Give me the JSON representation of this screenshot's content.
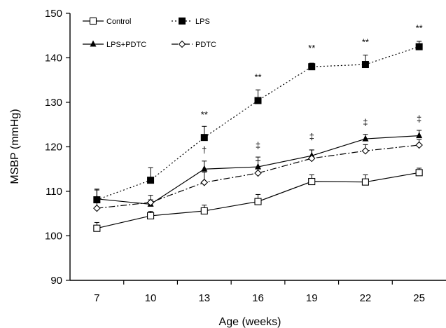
{
  "chart_data": {
    "type": "line",
    "title": "",
    "xlabel": "Age (weeks)",
    "ylabel": "MSBP (mmHg)",
    "x": [
      7,
      10,
      13,
      16,
      19,
      22,
      25
    ],
    "xlim": [
      5.5,
      26.5
    ],
    "ylim": [
      90,
      150
    ],
    "yticks": [
      90,
      100,
      110,
      120,
      130,
      140,
      150
    ],
    "grid": false,
    "legend_position": "top-left",
    "series": [
      {
        "name": "Control",
        "values": [
          101.7,
          104.5,
          105.6,
          107.7,
          112.2,
          112.1,
          114.2
        ],
        "errors": [
          1.3,
          1.0,
          1.3,
          1.6,
          1.5,
          1.6,
          1.0
        ],
        "marker": "open-square",
        "line_style": "solid",
        "color": "#000000"
      },
      {
        "name": "LPS",
        "values": [
          108.1,
          112.5,
          122.1,
          130.4,
          138.0,
          138.5,
          142.5
        ],
        "errors": [
          2.2,
          2.8,
          2.5,
          2.4,
          0.8,
          2.1,
          1.2
        ],
        "marker": "filled-square",
        "line_style": "dotted",
        "color": "#000000"
      },
      {
        "name": "LPS+PDTC",
        "values": [
          108.3,
          107.1,
          115.0,
          115.5,
          118.0,
          121.8,
          122.5
        ],
        "errors": [
          2.2,
          1.0,
          1.8,
          2.2,
          1.3,
          1.0,
          1.2
        ],
        "marker": "filled-triangle",
        "line_style": "solid",
        "color": "#000000"
      },
      {
        "name": "PDTC",
        "values": [
          106.2,
          107.5,
          112.0,
          114.1,
          117.4,
          119.1,
          120.4
        ],
        "errors": [
          2.0,
          1.6,
          2.3,
          2.8,
          1.9,
          1.4,
          1.2
        ],
        "marker": "open-diamond",
        "line_style": "dash-dot",
        "color": "#000000"
      }
    ],
    "annotations": [
      {
        "text": "**",
        "x": 13,
        "y": 126.5
      },
      {
        "text": "**",
        "x": 16,
        "y": 135.0
      },
      {
        "text": "**",
        "x": 19,
        "y": 141.5
      },
      {
        "text": "**",
        "x": 22,
        "y": 142.8
      },
      {
        "text": "**",
        "x": 25,
        "y": 146.0
      },
      {
        "text": "†",
        "x": 13,
        "y": 118.6
      },
      {
        "text": "‡",
        "x": 16,
        "y": 119.6
      },
      {
        "text": "‡",
        "x": 19,
        "y": 121.6
      },
      {
        "text": "‡",
        "x": 22,
        "y": 124.8
      },
      {
        "text": "‡",
        "x": 25,
        "y": 125.6
      }
    ]
  }
}
